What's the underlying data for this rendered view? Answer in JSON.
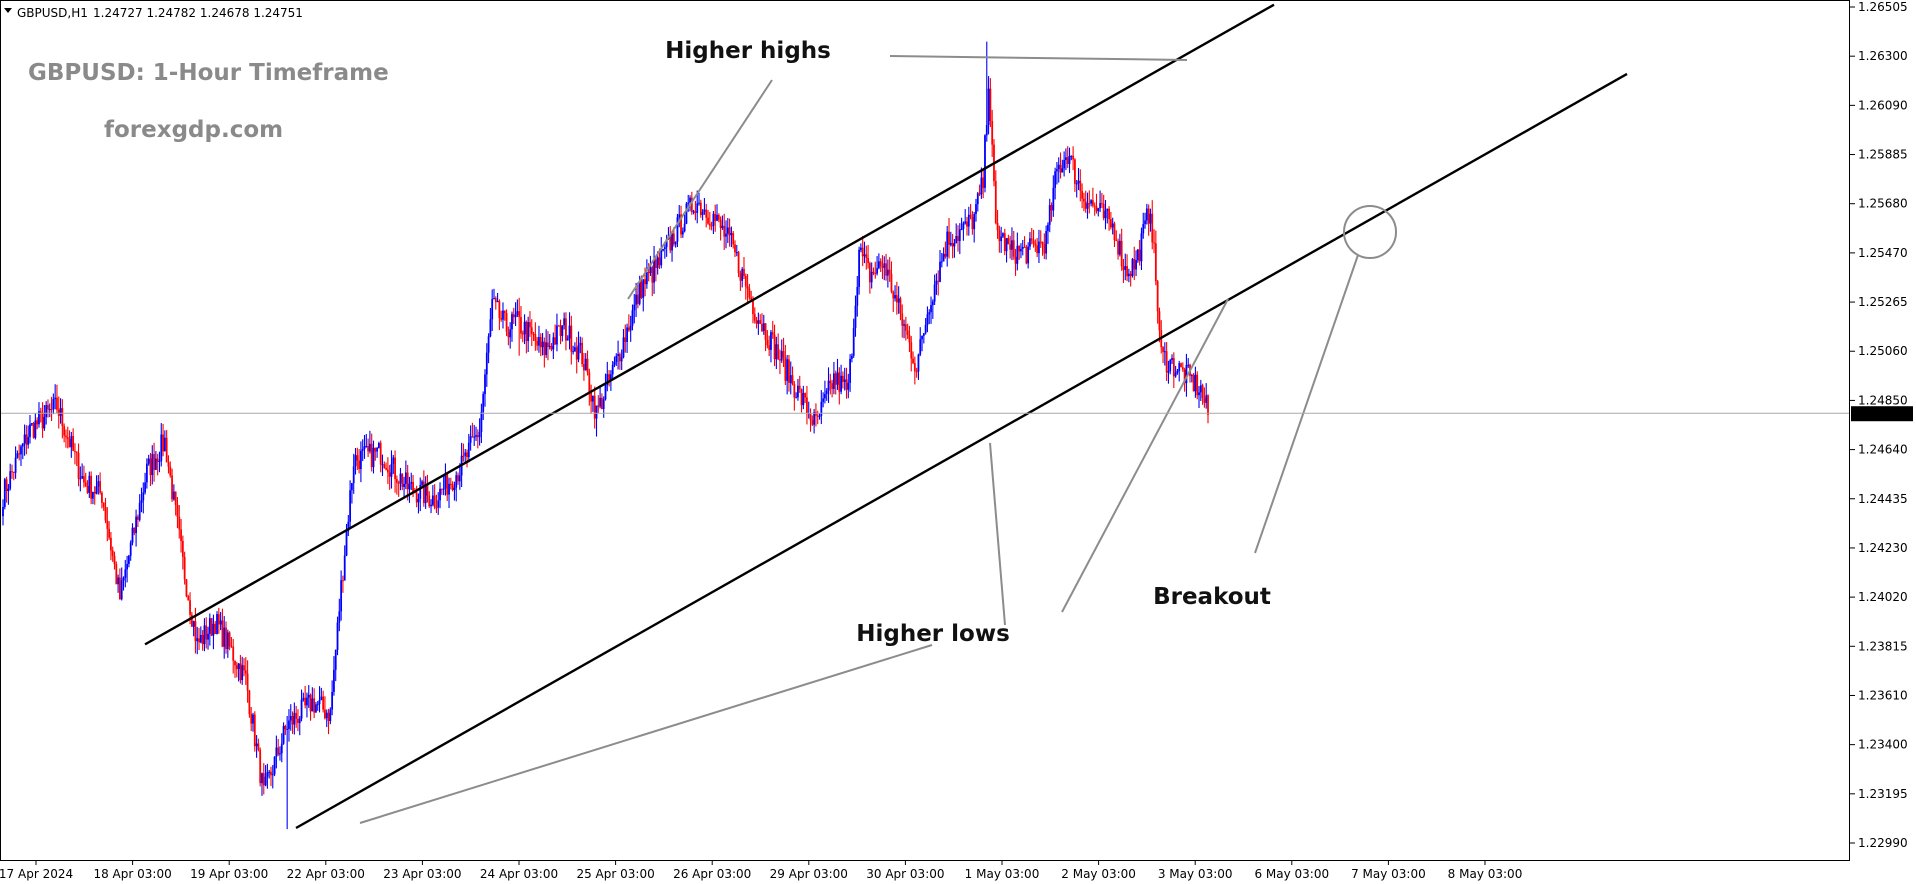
{
  "chart_data": {
    "type": "candlestick",
    "header": {
      "symbol": "GBPUSD,H1",
      "ohlc": "1.24727 1.24782 1.24678 1.24751"
    },
    "title": "GBPUSD: 1-Hour Timeframe",
    "subtitle": "forexgdp.com",
    "ylim": [
      1.2289,
      1.2651
    ],
    "y_ticks": [
      "1.26505",
      "1.26300",
      "1.26090",
      "1.25885",
      "1.25680",
      "1.25470",
      "1.25265",
      "1.25060",
      "1.24850",
      "1.24640",
      "1.24435",
      "1.24230",
      "1.24020",
      "1.23815",
      "1.23610",
      "1.23400",
      "1.23195",
      "1.22990"
    ],
    "x_ticks": [
      "17 Apr 2024",
      "18 Apr 03:00",
      "19 Apr 03:00",
      "22 Apr 03:00",
      "23 Apr 03:00",
      "24 Apr 03:00",
      "25 Apr 03:00",
      "26 Apr 03:00",
      "29 Apr 03:00",
      "30 Apr 03:00",
      "1 May 03:00",
      "2 May 03:00",
      "3 May 03:00",
      "6 May 03:00",
      "7 May 03:00",
      "8 May 03:00"
    ],
    "current_price": "1.24751",
    "up_color": "#0000ff",
    "down_color": "#ff0000",
    "anchors": [
      [
        0,
        1.244
      ],
      [
        15,
        1.2468
      ],
      [
        30,
        1.2478
      ],
      [
        45,
        1.2445
      ],
      [
        55,
        1.244
      ],
      [
        65,
        1.2395
      ],
      [
        80,
        1.245
      ],
      [
        90,
        1.2463
      ],
      [
        100,
        1.241
      ],
      [
        108,
        1.2375
      ],
      [
        118,
        1.2385
      ],
      [
        125,
        1.2375
      ],
      [
        135,
        1.236
      ],
      [
        145,
        1.231
      ],
      [
        158,
        1.234
      ],
      [
        172,
        1.235
      ],
      [
        182,
        1.2345
      ],
      [
        188,
        1.24
      ],
      [
        195,
        1.2455
      ],
      [
        210,
        1.2458
      ],
      [
        225,
        1.2443
      ],
      [
        240,
        1.2438
      ],
      [
        255,
        1.2452
      ],
      [
        265,
        1.2468
      ],
      [
        272,
        1.2522
      ],
      [
        280,
        1.2512
      ],
      [
        285,
        1.2515
      ],
      [
        292,
        1.251
      ],
      [
        300,
        1.2502
      ],
      [
        312,
        1.2512
      ],
      [
        322,
        1.25
      ],
      [
        330,
        1.2475
      ],
      [
        340,
        1.2495
      ],
      [
        355,
        1.253
      ],
      [
        365,
        1.254
      ],
      [
        375,
        1.2555
      ],
      [
        385,
        1.2567
      ],
      [
        395,
        1.256
      ],
      [
        405,
        1.2548
      ],
      [
        418,
        1.252
      ],
      [
        428,
        1.2505
      ],
      [
        440,
        1.2487
      ],
      [
        452,
        1.247
      ],
      [
        462,
        1.249
      ],
      [
        470,
        1.2485
      ],
      [
        476,
        1.2545
      ],
      [
        482,
        1.2535
      ],
      [
        490,
        1.254
      ],
      [
        500,
        1.2515
      ],
      [
        508,
        1.2495
      ],
      [
        515,
        1.2523
      ],
      [
        525,
        1.255
      ],
      [
        535,
        1.2555
      ],
      [
        540,
        1.256
      ],
      [
        545,
        1.2575
      ],
      [
        548,
        1.262
      ],
      [
        552,
        1.2555
      ],
      [
        560,
        1.2545
      ],
      [
        570,
        1.2545
      ],
      [
        580,
        1.255
      ],
      [
        586,
        1.258
      ],
      [
        592,
        1.2588
      ],
      [
        600,
        1.257
      ],
      [
        612,
        1.256
      ],
      [
        618,
        1.2555
      ],
      [
        624,
        1.2537
      ],
      [
        630,
        1.254
      ],
      [
        638,
        1.2565
      ],
      [
        644,
        1.25
      ],
      [
        652,
        1.2495
      ],
      [
        660,
        1.249
      ],
      [
        666,
        1.2485
      ],
      [
        670,
        1.2475
      ]
    ],
    "spikes": [
      {
        "i": 287,
        "h": 1.25
      },
      {
        "i": 330,
        "h": 1.2465
      },
      {
        "i": 547,
        "h": 1.2636
      },
      {
        "i": 158,
        "h": 1.2295
      }
    ],
    "lines": [
      {
        "x1": 145,
        "y1": 1.2375,
        "x2": 1274,
        "y2": 1.2652
      },
      {
        "x1": 296,
        "y1": 1.22955,
        "x2": 1627,
        "y2": 1.2622
      }
    ],
    "annotations": [
      {
        "text": "Higher highs",
        "x": 748,
        "y": 58
      },
      {
        "text": "Higher lows",
        "x": 933,
        "y": 641
      },
      {
        "text": "Breakout",
        "x": 1212,
        "y": 604
      }
    ],
    "pointers": [
      {
        "x1": 890,
        "y1": 56,
        "x2": 1187,
        "y2": 60
      },
      {
        "x1": 772,
        "y1": 80,
        "x2": 628,
        "y2": 299
      },
      {
        "x1": 932,
        "y1": 645,
        "x2": 360,
        "y2": 823
      },
      {
        "x1": 1005,
        "y1": 625,
        "x2": 990,
        "y2": 443
      },
      {
        "x1": 1062,
        "y1": 612,
        "x2": 1228,
        "y2": 299
      },
      {
        "x1": 1255,
        "y1": 553,
        "x2": 1358,
        "y2": 255
      }
    ],
    "circle": {
      "cx": 1370,
      "cy": 232,
      "r": 26
    }
  }
}
